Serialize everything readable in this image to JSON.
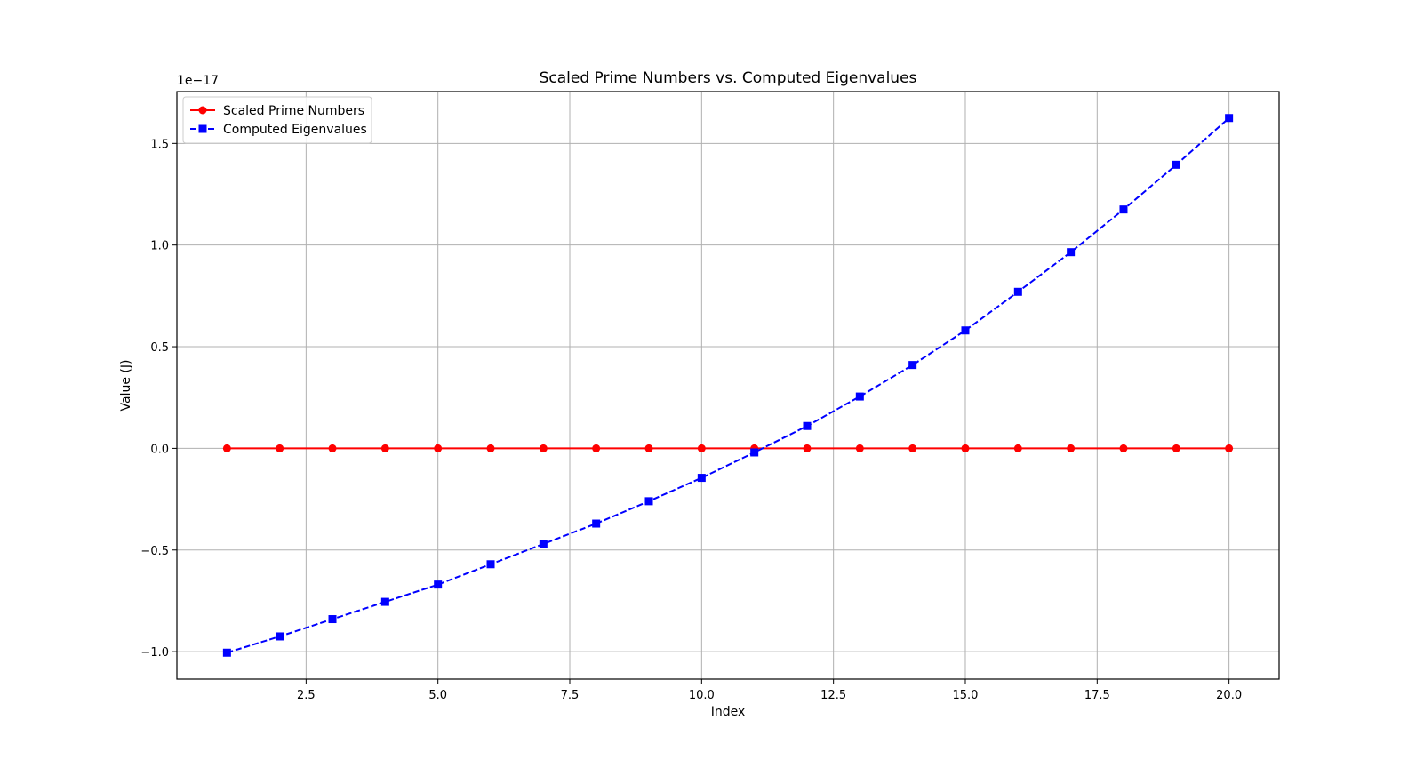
{
  "chart_data": {
    "type": "line",
    "title": "Scaled Prime Numbers vs. Computed Eigenvalues",
    "xlabel": "Index",
    "ylabel": "Value (J)",
    "y_offset_label": "1e−17",
    "xlim": [
      0.05,
      20.95
    ],
    "ylim": [
      -1.135,
      1.755
    ],
    "y_scale_exponent": -17,
    "x_ticks": [
      2.5,
      5.0,
      7.5,
      10.0,
      12.5,
      15.0,
      17.5,
      20.0
    ],
    "x_tick_labels": [
      "2.5",
      "5.0",
      "7.5",
      "10.0",
      "12.5",
      "15.0",
      "17.5",
      "20.0"
    ],
    "y_ticks": [
      -1.0,
      -0.5,
      0.0,
      0.5,
      1.0,
      1.5
    ],
    "y_tick_labels": [
      "−1.0",
      "−0.5",
      "0.0",
      "0.5",
      "1.0",
      "1.5"
    ],
    "grid": true,
    "legend_position": "top-left",
    "x": [
      1,
      2,
      3,
      4,
      5,
      6,
      7,
      8,
      9,
      10,
      11,
      12,
      13,
      14,
      15,
      16,
      17,
      18,
      19,
      20
    ],
    "series": [
      {
        "name": "Scaled Prime Numbers",
        "color": "#ff0000",
        "line_style": "solid",
        "marker": "circle",
        "values": [
          0,
          0,
          0,
          0,
          0,
          0,
          0,
          0,
          0,
          0,
          0,
          0,
          0,
          0,
          0,
          0,
          0,
          0,
          0,
          0
        ]
      },
      {
        "name": "Computed Eigenvalues",
        "color": "#0000ff",
        "line_style": "dashed",
        "marker": "square",
        "values": [
          -1.005,
          -0.925,
          -0.84,
          -0.755,
          -0.67,
          -0.57,
          -0.47,
          -0.37,
          -0.26,
          -0.145,
          -0.02,
          0.11,
          0.255,
          0.41,
          0.58,
          0.77,
          0.965,
          1.175,
          1.395,
          1.625
        ]
      }
    ]
  }
}
